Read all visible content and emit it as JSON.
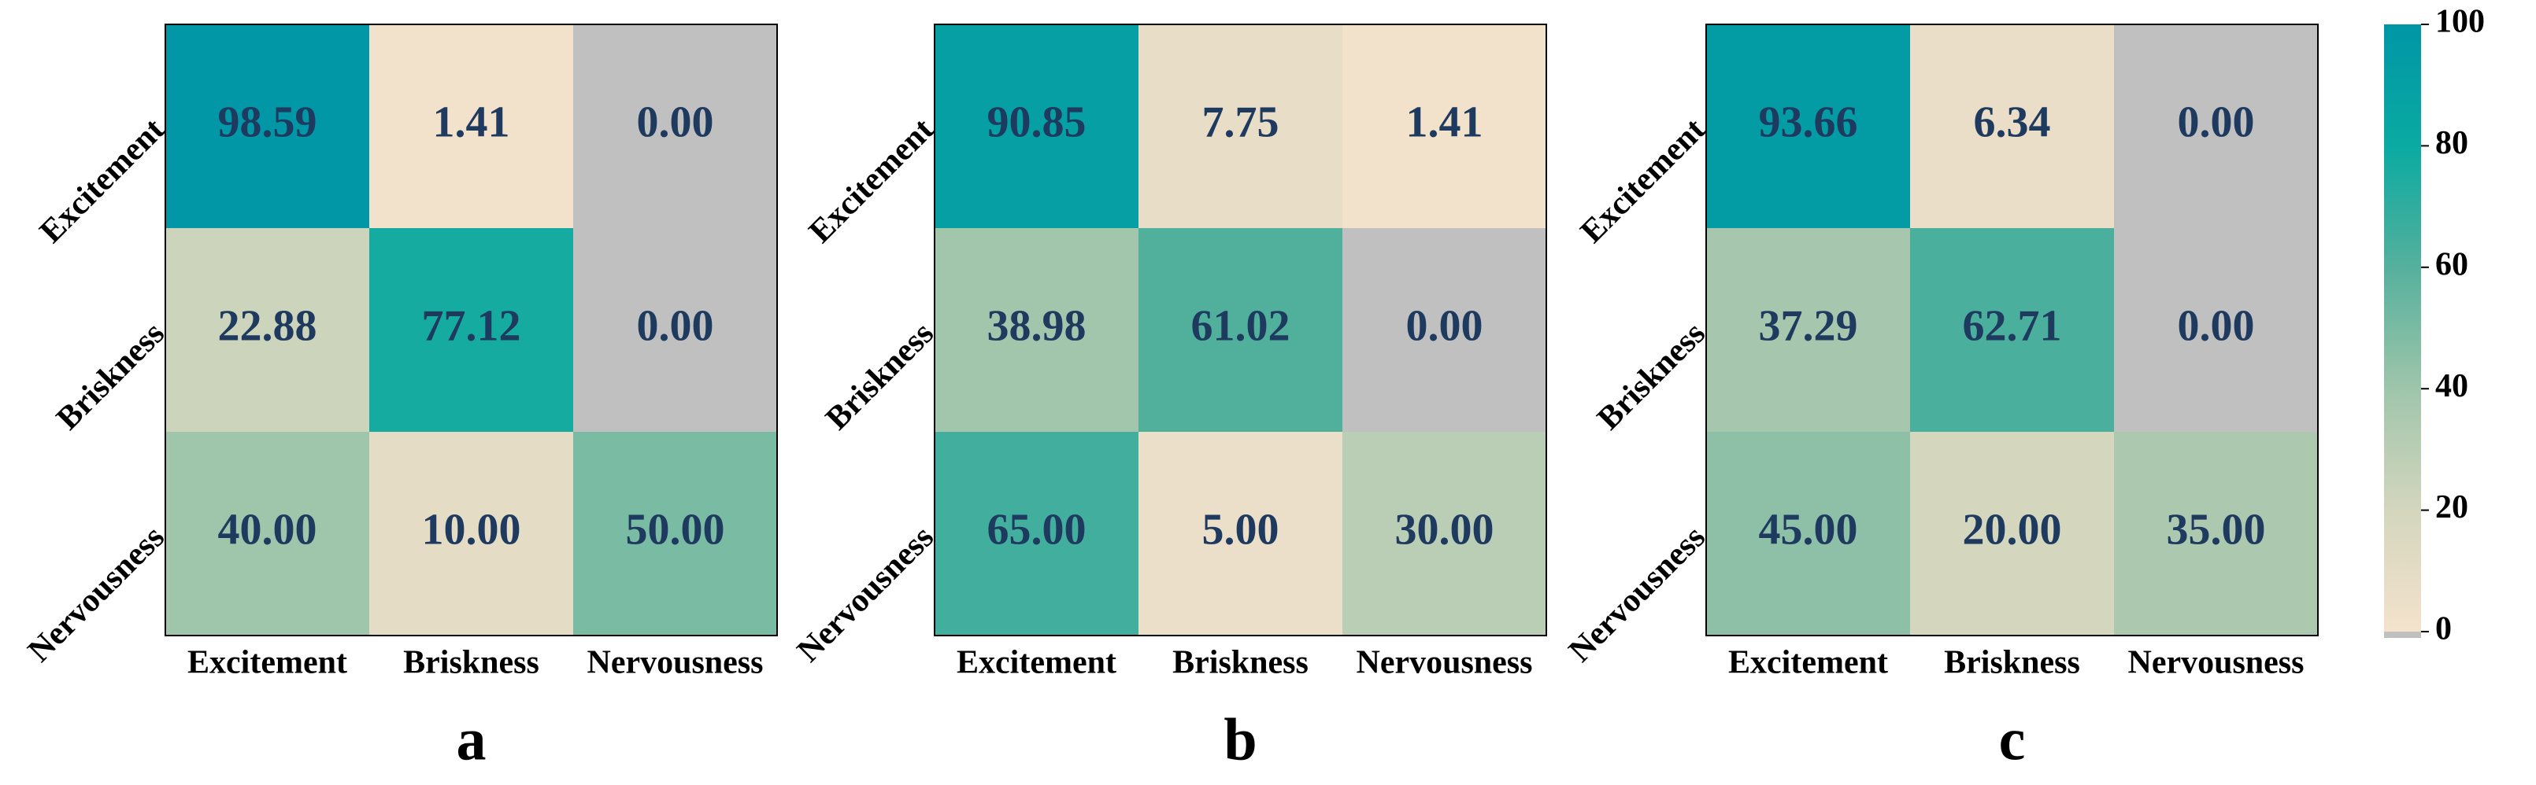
{
  "chart_data": [
    {
      "type": "heatmap",
      "title": "a",
      "x_categories": [
        "Excitement",
        "Briskness",
        "Nervousness"
      ],
      "y_categories": [
        "Excitement",
        "Briskness",
        "Nervousness"
      ],
      "values": [
        [
          98.59,
          1.41,
          0
        ],
        [
          22.88,
          77.12,
          0
        ],
        [
          40,
          10,
          50
        ]
      ],
      "value_labels": [
        [
          "98.59",
          "1.41",
          "0.00"
        ],
        [
          "22.88",
          "77.12",
          "0.00"
        ],
        [
          "40.00",
          "10.00",
          "50.00"
        ]
      ]
    },
    {
      "type": "heatmap",
      "title": "b",
      "x_categories": [
        "Excitement",
        "Briskness",
        "Nervousness"
      ],
      "y_categories": [
        "Excitement",
        "Briskness",
        "Nervousness"
      ],
      "values": [
        [
          90.85,
          7.75,
          1.41
        ],
        [
          38.98,
          61.02,
          0
        ],
        [
          65,
          5,
          30
        ]
      ],
      "value_labels": [
        [
          "90.85",
          "7.75",
          "1.41"
        ],
        [
          "38.98",
          "61.02",
          "0.00"
        ],
        [
          "65.00",
          "5.00",
          "30.00"
        ]
      ]
    },
    {
      "type": "heatmap",
      "title": "c",
      "x_categories": [
        "Excitement",
        "Briskness",
        "Nervousness"
      ],
      "y_categories": [
        "Excitement",
        "Briskness",
        "Nervousness"
      ],
      "values": [
        [
          93.66,
          6.34,
          0
        ],
        [
          37.29,
          62.71,
          0
        ],
        [
          45,
          20,
          35
        ]
      ],
      "value_labels": [
        [
          "93.66",
          "6.34",
          "0.00"
        ],
        [
          "37.29",
          "62.71",
          "0.00"
        ],
        [
          "45.00",
          "20.00",
          "35.00"
        ]
      ]
    }
  ],
  "colorbar": {
    "lim": [
      0,
      100
    ],
    "ticks": [
      0,
      20,
      40,
      60,
      80,
      100
    ],
    "colors": [
      "#f4e2cc",
      "#d4d6be",
      "#9fc5ab",
      "#55b09c",
      "#0aaaa2",
      "#0096a6"
    ],
    "under_color": "#c0c0c0"
  }
}
